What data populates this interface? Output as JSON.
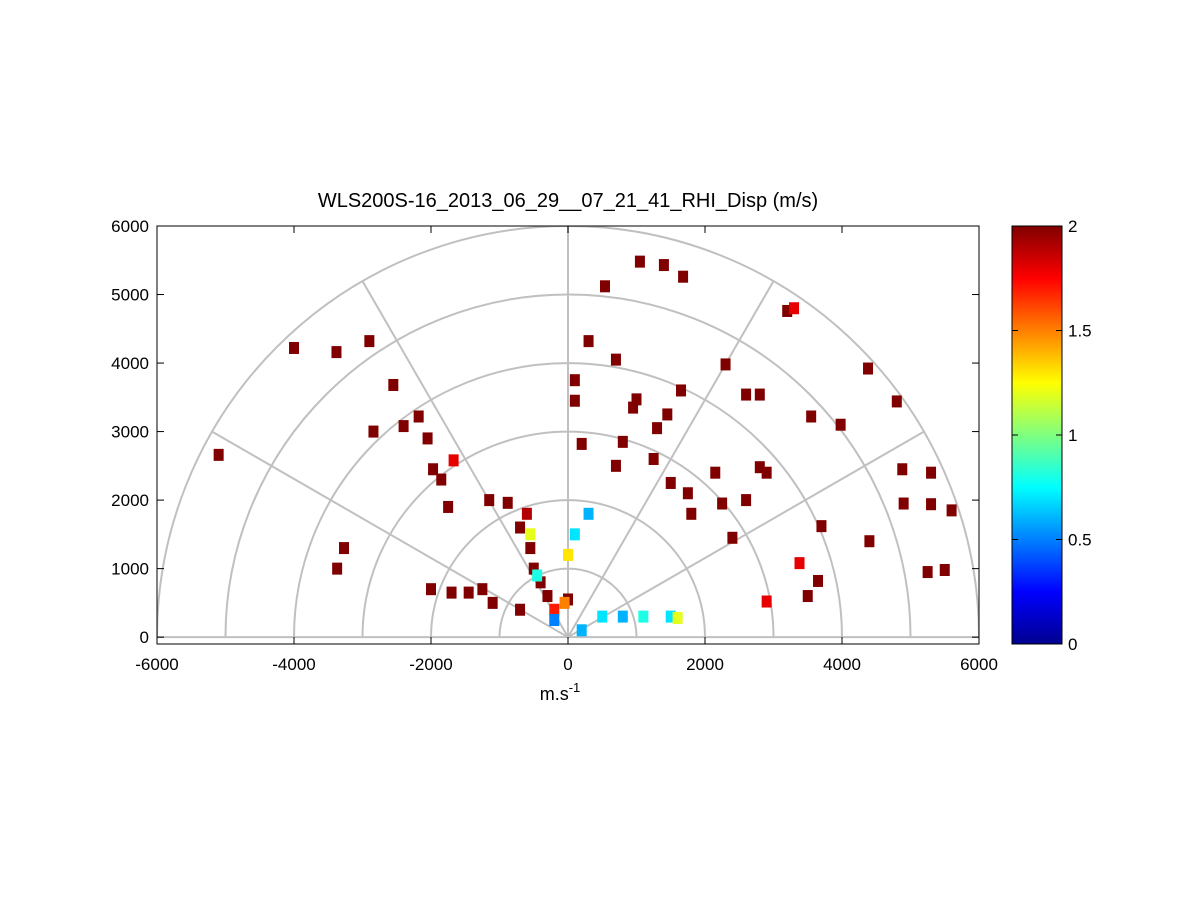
{
  "chart_data": {
    "type": "scatter",
    "title": "WLS200S-16_2013_06_29__07_21_41_RHI_Disp (m/s)",
    "xlabel": "m.s",
    "xlabel_sup": "-1",
    "ylabel": "",
    "xlim": [
      -6000,
      6000
    ],
    "ylim": [
      -100,
      6000
    ],
    "xticks": [
      "-6000",
      "-4000",
      "-2000",
      "0",
      "2000",
      "4000",
      "6000"
    ],
    "yticks": [
      "0",
      "1000",
      "2000",
      "3000",
      "4000",
      "5000",
      "6000"
    ],
    "polar_grid": {
      "rings": [
        1000,
        2000,
        3000,
        4000,
        5000,
        6000
      ],
      "spokes_deg": [
        0,
        30,
        60,
        90,
        120,
        150,
        180
      ]
    },
    "colorbar": {
      "range": [
        0,
        2
      ],
      "ticks": [
        "0",
        "0.5",
        "1",
        "1.5",
        "2"
      ],
      "colormap": "jet"
    },
    "points": [
      [
        -5100,
        2660,
        2
      ],
      [
        -4000,
        4220,
        2
      ],
      [
        -3380,
        4160,
        2
      ],
      [
        -2900,
        4320,
        2
      ],
      [
        -2550,
        3680,
        2
      ],
      [
        -2840,
        3000,
        2
      ],
      [
        -2400,
        3080,
        2
      ],
      [
        -2180,
        3220,
        2
      ],
      [
        -2050,
        2900,
        2
      ],
      [
        -1970,
        2450,
        2
      ],
      [
        -1850,
        2300,
        2
      ],
      [
        -1670,
        2580,
        1.8
      ],
      [
        -1750,
        1900,
        2
      ],
      [
        -1150,
        2000,
        2
      ],
      [
        -880,
        1960,
        2
      ],
      [
        -3270,
        1300,
        2
      ],
      [
        -3370,
        1000,
        2
      ],
      [
        -2000,
        700,
        2
      ],
      [
        -1700,
        650,
        2
      ],
      [
        -1450,
        650,
        2
      ],
      [
        -1250,
        700,
        2
      ],
      [
        -1100,
        500,
        2
      ],
      [
        -700,
        1600,
        2
      ],
      [
        -550,
        1300,
        2
      ],
      [
        -500,
        1000,
        2
      ],
      [
        -400,
        800,
        2
      ],
      [
        -700,
        400,
        2
      ],
      [
        -300,
        600,
        2
      ],
      [
        -600,
        1800,
        1.9
      ],
      [
        -550,
        1500,
        1.2
      ],
      [
        -450,
        900,
        0.8
      ],
      [
        -200,
        400,
        1.7
      ],
      [
        0,
        550,
        2
      ],
      [
        -50,
        500,
        1.5
      ],
      [
        0,
        1200,
        1.3
      ],
      [
        100,
        1500,
        0.7
      ],
      [
        300,
        1800,
        0.6
      ],
      [
        500,
        300,
        0.7
      ],
      [
        800,
        300,
        0.6
      ],
      [
        1100,
        300,
        0.8
      ],
      [
        1500,
        300,
        0.7
      ],
      [
        -200,
        250,
        0.5
      ],
      [
        200,
        100,
        0.6
      ],
      [
        1600,
        280,
        1.2
      ],
      [
        1400,
        5430,
        2
      ],
      [
        1680,
        5260,
        2
      ],
      [
        540,
        5120,
        2
      ],
      [
        1050,
        5480,
        2
      ],
      [
        3200,
        4760,
        2
      ],
      [
        3300,
        4800,
        1.8
      ],
      [
        2300,
        3980,
        2
      ],
      [
        2600,
        3540,
        2
      ],
      [
        2800,
        3540,
        2
      ],
      [
        3550,
        3220,
        2
      ],
      [
        3980,
        3100,
        2
      ],
      [
        4380,
        3920,
        2
      ],
      [
        4800,
        3440,
        2
      ],
      [
        300,
        4320,
        2
      ],
      [
        700,
        4050,
        2
      ],
      [
        100,
        3750,
        2
      ],
      [
        100,
        3450,
        2
      ],
      [
        1000,
        3470,
        2
      ],
      [
        950,
        3350,
        2
      ],
      [
        1450,
        3250,
        2
      ],
      [
        1650,
        3600,
        2
      ],
      [
        1300,
        3050,
        2
      ],
      [
        800,
        2850,
        2
      ],
      [
        200,
        2820,
        2
      ],
      [
        700,
        2500,
        2
      ],
      [
        1250,
        2600,
        2
      ],
      [
        1500,
        2250,
        2
      ],
      [
        1750,
        2100,
        2
      ],
      [
        2150,
        2400,
        2
      ],
      [
        2800,
        2480,
        2
      ],
      [
        2900,
        2400,
        2
      ],
      [
        2600,
        2000,
        2
      ],
      [
        2250,
        1950,
        2
      ],
      [
        1800,
        1800,
        2
      ],
      [
        2400,
        1450,
        2
      ],
      [
        3700,
        1620,
        2
      ],
      [
        3380,
        1080,
        1.8
      ],
      [
        3650,
        820,
        2
      ],
      [
        3500,
        600,
        2
      ],
      [
        2900,
        520,
        1.8
      ],
      [
        4880,
        2450,
        2
      ],
      [
        5300,
        2400,
        2
      ],
      [
        5600,
        1850,
        2
      ],
      [
        5300,
        1940,
        2
      ],
      [
        4900,
        1950,
        2
      ],
      [
        5250,
        950,
        2
      ],
      [
        5500,
        980,
        2
      ],
      [
        4400,
        1400,
        2
      ]
    ]
  }
}
